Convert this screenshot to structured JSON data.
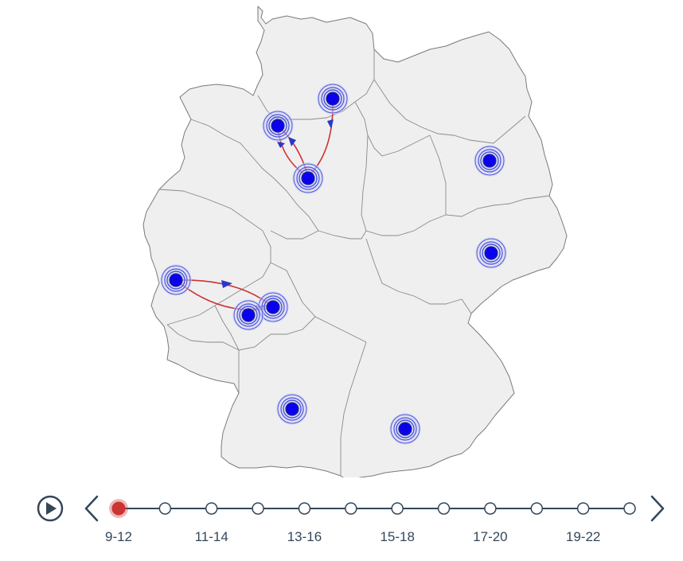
{
  "map": {
    "cities": [
      {
        "name": "hamburg",
        "lat": 53.55,
        "lon": 9.99
      },
      {
        "name": "bremen",
        "lat": 53.08,
        "lon": 8.8
      },
      {
        "name": "hannover",
        "lat": 52.37,
        "lon": 9.73
      },
      {
        "name": "berlin",
        "lat": 52.52,
        "lon": 13.4
      },
      {
        "name": "dresden",
        "lat": 51.05,
        "lon": 13.74
      },
      {
        "name": "cologne",
        "lat": 50.94,
        "lon": 6.96
      },
      {
        "name": "frankfurt",
        "lat": 50.11,
        "lon": 8.68
      },
      {
        "name": "mannheim",
        "lat": 49.49,
        "lon": 8.47
      },
      {
        "name": "stuttgart",
        "lat": 48.78,
        "lon": 9.18
      },
      {
        "name": "munich",
        "lat": 48.14,
        "lon": 11.58
      }
    ],
    "routes": [
      {
        "from": "hannover",
        "to": "hamburg"
      },
      {
        "from": "hannover",
        "to": "bremen"
      },
      {
        "from": "bremen",
        "to": "hannover"
      },
      {
        "from": "cologne",
        "to": "frankfurt"
      },
      {
        "from": "frankfurt",
        "to": "cologne"
      },
      {
        "from": "frankfurt",
        "to": "mannheim"
      }
    ],
    "colors": {
      "land": "#efeff0",
      "route": "#cc3333",
      "city": "#0b00ee"
    }
  },
  "timeline": {
    "labels": [
      "9-12",
      "11-14",
      "13-16",
      "15-18",
      "17-20",
      "19-22"
    ],
    "node_count": 12,
    "active_index": 0,
    "play_icon": "play-icon",
    "prev_icon": "chevron-left-icon",
    "next_icon": "chevron-right-icon"
  }
}
